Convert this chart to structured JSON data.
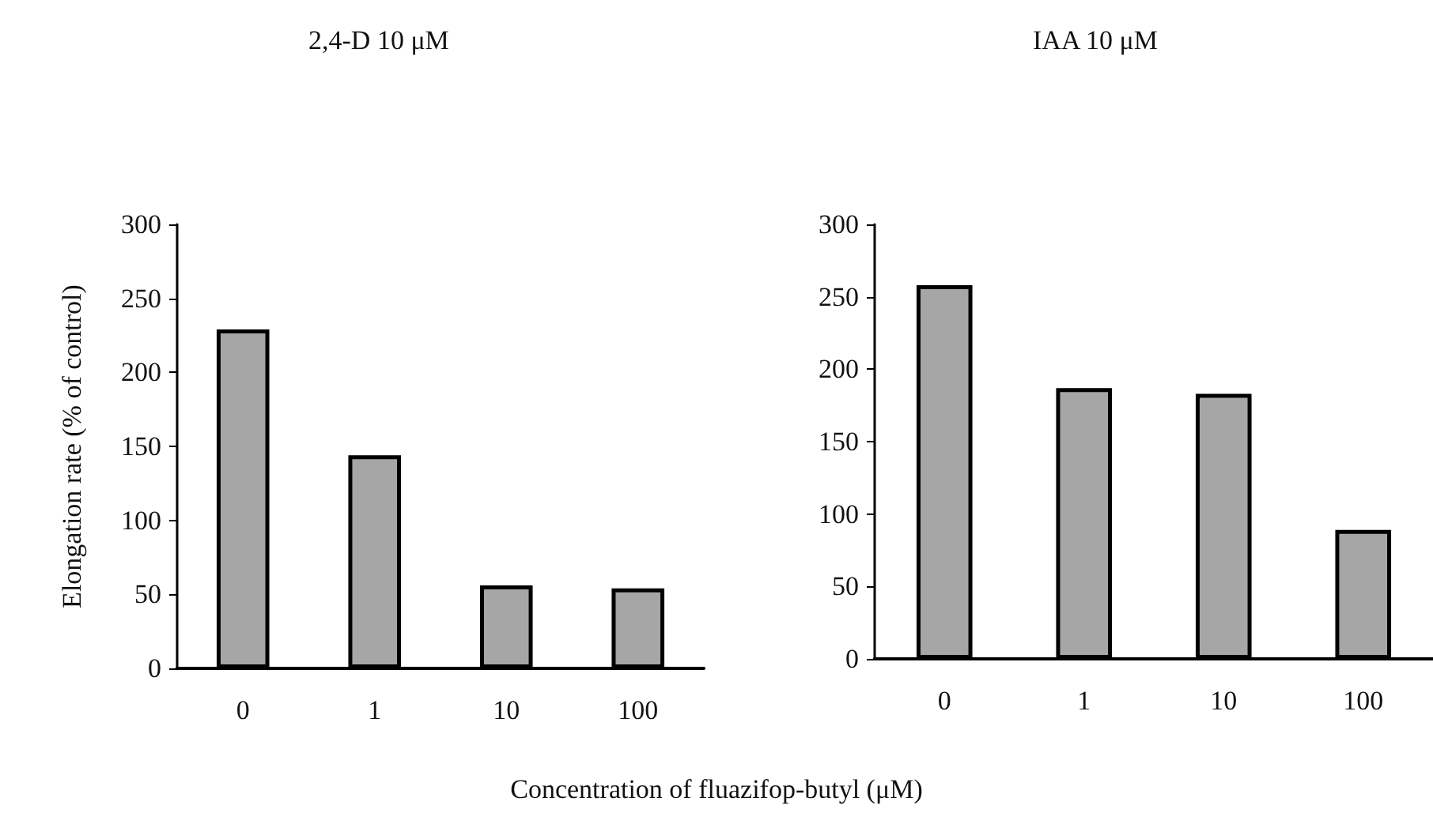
{
  "chart_data": [
    {
      "type": "bar",
      "title": "2,4-D 10 μM",
      "ylabel": "Elongation rate (% of control)",
      "xlabel": "Concentration of fluazifop-butyl (μM)",
      "categories": [
        "0",
        "1",
        "10",
        "100"
      ],
      "values": [
        229,
        144,
        56,
        54
      ],
      "color": "#a6a6a6",
      "ylim": [
        0,
        300
      ],
      "yticks": [
        0,
        50,
        100,
        150,
        200,
        250,
        300
      ]
    },
    {
      "type": "bar",
      "title": "IAA 10 μM",
      "categories": [
        "0",
        "1",
        "10",
        "100"
      ],
      "values": [
        258,
        187,
        183,
        89
      ],
      "color": "#a6a6a6",
      "ylim": [
        0,
        300
      ],
      "yticks": [
        0,
        50,
        100,
        150,
        200,
        250,
        300
      ]
    }
  ]
}
